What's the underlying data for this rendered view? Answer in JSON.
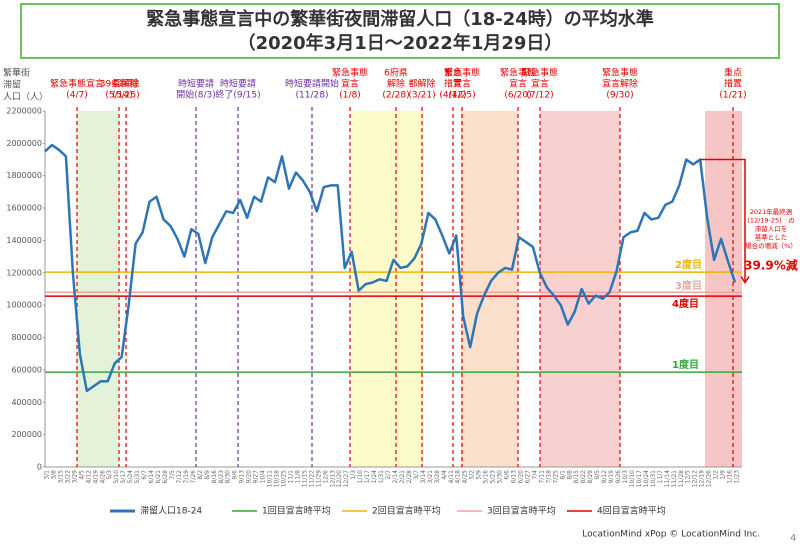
{
  "chart_data": {
    "type": "line",
    "title": [
      "緊急事態宣言中の繁華街夜間滞留人口（18-24時）の平均水準",
      "（2020年3月1日～2022年1月29日）"
    ],
    "ylabel": [
      "繁華街",
      "滞留",
      "人口（人）"
    ],
    "categories": [
      "3/1",
      "3/8",
      "3/15",
      "3/22",
      "3/29",
      "4/5",
      "4/12",
      "4/19",
      "4/26",
      "5/3",
      "5/10",
      "5/17",
      "5/24",
      "5/31",
      "6/7",
      "6/14",
      "6/21",
      "6/28",
      "7/5",
      "7/12",
      "7/19",
      "7/26",
      "8/2",
      "8/9",
      "8/16",
      "8/23",
      "8/30",
      "9/6",
      "9/13",
      "9/20",
      "9/27",
      "10/4",
      "10/11",
      "10/18",
      "10/25",
      "11/1",
      "11/8",
      "11/15",
      "11/22",
      "11/29",
      "12/6",
      "12/13",
      "12/20",
      "12/27",
      "1/3",
      "1/10",
      "1/17",
      "1/24",
      "1/31",
      "2/7",
      "2/14",
      "2/21",
      "2/28",
      "3/7",
      "3/14",
      "3/21",
      "3/28",
      "4/4",
      "4/11",
      "4/18",
      "4/25",
      "5/2",
      "5/9",
      "5/16",
      "5/23",
      "5/30",
      "6/6",
      "6/13",
      "6/20",
      "6/27",
      "7/4",
      "7/11",
      "7/18",
      "7/25",
      "8/1",
      "8/8",
      "8/15",
      "8/22",
      "8/29",
      "9/5",
      "9/12",
      "9/19",
      "9/26",
      "10/3",
      "10/10",
      "10/17",
      "10/24",
      "10/31",
      "11/7",
      "11/14",
      "11/21",
      "11/28",
      "12/5",
      "12/12",
      "12/19",
      "12/26",
      "1/2",
      "1/9",
      "1/16",
      "1/23"
    ],
    "series": [
      {
        "name": "滞留人口18-24",
        "color": "#2e75b6",
        "values": [
          1950000,
          1990000,
          1960000,
          1920000,
          1200000,
          700000,
          470000,
          500000,
          530000,
          530000,
          640000,
          680000,
          1000000,
          1380000,
          1450000,
          1640000,
          1670000,
          1530000,
          1490000,
          1410000,
          1300000,
          1470000,
          1440000,
          1260000,
          1420000,
          1500000,
          1580000,
          1570000,
          1650000,
          1540000,
          1670000,
          1640000,
          1790000,
          1760000,
          1920000,
          1720000,
          1820000,
          1770000,
          1700000,
          1580000,
          1730000,
          1740000,
          1740000,
          1230000,
          1330000,
          1090000,
          1130000,
          1140000,
          1160000,
          1150000,
          1280000,
          1230000,
          1240000,
          1290000,
          1380000,
          1570000,
          1530000,
          1430000,
          1320000,
          1430000,
          930000,
          740000,
          950000,
          1060000,
          1150000,
          1200000,
          1230000,
          1220000,
          1420000,
          1390000,
          1360000,
          1200000,
          1110000,
          1060000,
          1000000,
          880000,
          960000,
          1100000,
          1010000,
          1060000,
          1040000,
          1080000,
          1210000,
          1420000,
          1450000,
          1460000,
          1570000,
          1530000,
          1540000,
          1620000,
          1640000,
          1740000,
          1900000,
          1870000,
          1900000,
          1540000,
          1280000,
          1410000,
          1270000,
          1140000
        ]
      }
    ],
    "reference_lines": [
      {
        "name": "1回目宣言時平均",
        "label": "1度目",
        "value": 586000,
        "color": "#3aa63a"
      },
      {
        "name": "2回目宣言時平均",
        "label": "2度目",
        "value": 1204000,
        "color": "#f0b400"
      },
      {
        "name": "3回目宣言時平均",
        "label": "3度目",
        "value": 1080000,
        "color": "#f4a3a3"
      },
      {
        "name": "4回目宣言時平均",
        "label": "4度目",
        "value": 1056000,
        "color": "#e00000"
      }
    ],
    "events": [
      {
        "label": [
          "緊急事態宣言",
          "(4/7)"
        ],
        "color": "#e00000"
      },
      {
        "label": [
          "39県解除",
          "(5/14)"
        ],
        "color": "#e00000"
      },
      {
        "label": [
          "都解除",
          "(5/25)"
        ],
        "color": "#e00000"
      },
      {
        "label": [
          "時短要請",
          "開始(8/3)"
        ],
        "color": "#7030a0"
      },
      {
        "label": [
          "時短要請",
          "終了(9/15)"
        ],
        "color": "#7030a0"
      },
      {
        "label": [
          "時短要請開始",
          "(11/28)"
        ],
        "color": "#7030a0"
      },
      {
        "label": [
          "緊急事態",
          "宣言",
          "(1/8)"
        ],
        "color": "#e00000"
      },
      {
        "label": [
          "6府県",
          "解除",
          "(2/28)"
        ],
        "color": "#e00000"
      },
      {
        "label": [
          "都解除",
          "(3/21)"
        ],
        "color": "#e00000"
      },
      {
        "label": [
          "重点",
          "措置",
          "(4/12)"
        ],
        "color": "#e00000"
      },
      {
        "label": [
          "緊急事態",
          "宣言",
          "(4/25)"
        ],
        "color": "#e00000"
      },
      {
        "label": [
          "緊急事態",
          "宣言",
          "(6/20)"
        ],
        "color": "#e00000"
      },
      {
        "label": [
          "緊急事態",
          "宣言",
          "(7/12)"
        ],
        "color": "#e00000"
      },
      {
        "label": [
          "緊急事態",
          "宣言解除",
          "(9/30)"
        ],
        "color": "#e00000"
      },
      {
        "label": [
          "重点",
          "措置",
          "(1/21)"
        ],
        "color": "#e00000"
      }
    ],
    "annotation": {
      "text": [
        "2021年最終週",
        "(12/19-25)　の",
        "滞留人口を",
        "基準とした",
        "場合の増減（%）"
      ],
      "value_label": "39.9%減"
    },
    "ylim": [
      0,
      2200000
    ],
    "yticks": [
      0,
      200000,
      400000,
      600000,
      800000,
      1000000,
      1200000,
      1400000,
      1600000,
      1800000,
      2000000,
      2200000
    ],
    "footer": "LocationMind xPop © LocationMind Inc.",
    "page": "4"
  }
}
